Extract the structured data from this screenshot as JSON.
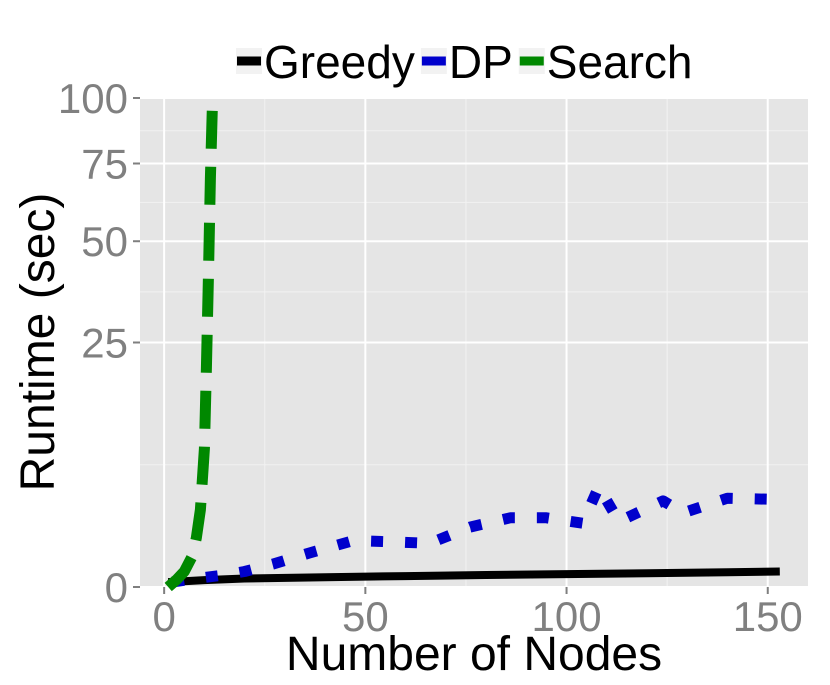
{
  "chart_data": {
    "type": "line",
    "xlabel": "Number of Nodes",
    "ylabel": "Runtime (sec)",
    "xlim": [
      -6,
      160
    ],
    "ylim": [
      0,
      100
    ],
    "y_scale": "sqrt",
    "x_ticks": [
      0,
      50,
      100,
      150
    ],
    "x_tick_labels": [
      "0",
      "50",
      "100",
      "150"
    ],
    "y_ticks": [
      0,
      25,
      50,
      75,
      100
    ],
    "y_tick_labels": [
      "0",
      "25",
      "50",
      "75",
      "100"
    ],
    "grid": true,
    "legend_position": "top",
    "series": [
      {
        "name": "Greedy",
        "color": "#000000",
        "dash": "solid",
        "x": [
          1,
          10,
          20,
          40,
          60,
          80,
          100,
          120,
          140,
          153
        ],
        "y": [
          0.01,
          0.02,
          0.03,
          0.04,
          0.05,
          0.06,
          0.07,
          0.08,
          0.09,
          0.1
        ]
      },
      {
        "name": "DP",
        "color": "#0000cc",
        "dash": "dotted",
        "x": [
          2,
          8,
          15,
          20,
          27,
          36,
          47,
          57,
          66,
          76,
          86,
          95,
          104,
          108,
          113,
          124,
          129,
          140,
          153
        ],
        "y": [
          0.01,
          0.03,
          0.06,
          0.1,
          0.22,
          0.48,
          0.9,
          0.85,
          0.8,
          1.5,
          2.0,
          2.0,
          1.7,
          4.2,
          1.8,
          3.1,
          2.3,
          3.3,
          3.2
        ]
      },
      {
        "name": "Search",
        "color": "#008800",
        "dash": "dashed",
        "x": [
          1,
          3,
          5,
          7,
          8,
          9,
          10,
          10.5,
          11,
          11.5,
          12
        ],
        "y": [
          0.0,
          0.02,
          0.1,
          0.4,
          1.0,
          2.5,
          8,
          20,
          40,
          70,
          97
        ]
      }
    ]
  }
}
